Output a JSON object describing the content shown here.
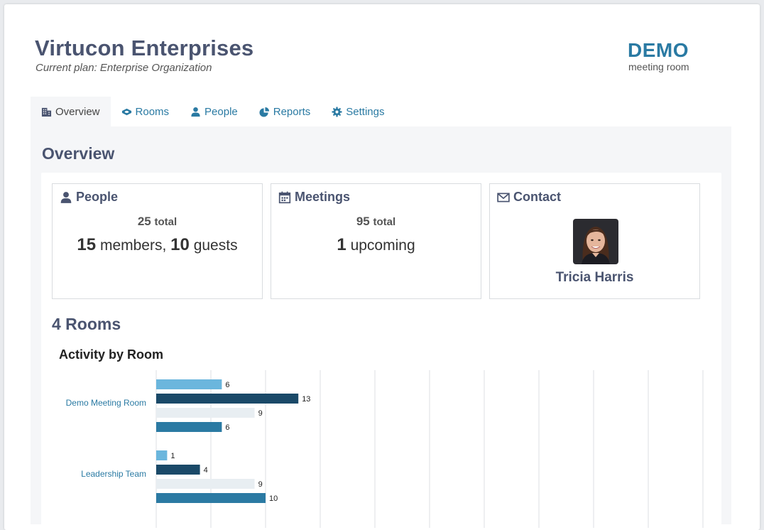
{
  "header": {
    "org_name": "Virtucon Enterprises",
    "plan": "Current plan: Enterprise Organization",
    "logo_main": "DEMO",
    "logo_sub": "meeting room"
  },
  "tabs": [
    {
      "label": "Overview",
      "icon": "building-icon",
      "active": true
    },
    {
      "label": "Rooms",
      "icon": "room-icon",
      "active": false
    },
    {
      "label": "People",
      "icon": "person-icon",
      "active": false
    },
    {
      "label": "Reports",
      "icon": "pie-chart-icon",
      "active": false
    },
    {
      "label": "Settings",
      "icon": "gear-icon",
      "active": false
    }
  ],
  "overview": {
    "title": "Overview",
    "people": {
      "heading": "People",
      "total": "25",
      "total_word": "total",
      "members": "15",
      "members_word": "members,",
      "guests": "10",
      "guests_word": "guests"
    },
    "meetings": {
      "heading": "Meetings",
      "total": "95",
      "total_word": "total",
      "upcoming": "1",
      "upcoming_word": "upcoming"
    },
    "contact": {
      "heading": "Contact",
      "name": "Tricia Harris"
    }
  },
  "rooms": {
    "title": "4 Rooms"
  },
  "colors": {
    "accent": "#2a7aa3",
    "heading": "#4a5470",
    "series": [
      "#6bb6dd",
      "#1a4968",
      "#e8eef2",
      "#2b7aa3"
    ]
  },
  "chart_data": {
    "type": "bar",
    "orientation": "horizontal",
    "title": "Activity by Room",
    "categories": [
      "Demo Meeting Room",
      "Leadership Team"
    ],
    "series": [
      {
        "values": [
          6,
          1
        ]
      },
      {
        "values": [
          13,
          4
        ]
      },
      {
        "values": [
          9,
          9
        ]
      },
      {
        "values": [
          6,
          10
        ]
      }
    ],
    "grid": true
  }
}
